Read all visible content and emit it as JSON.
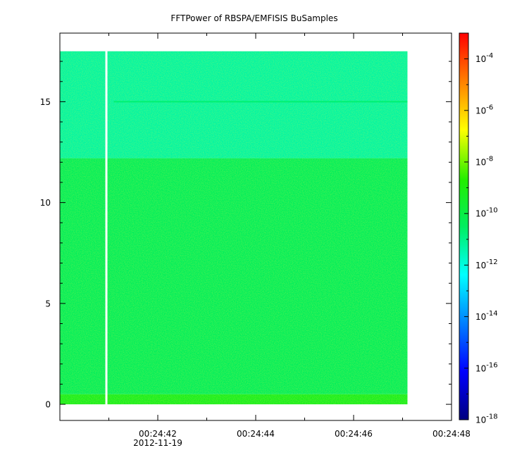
{
  "chart_data": {
    "type": "heatmap",
    "title": "FFTPower of RBSPA/EMFISIS  BuSamples",
    "xlabel": "",
    "ylabel": "",
    "x_range": [
      "00:24:40",
      "00:24:48"
    ],
    "x_ticks": [
      {
        "time": "00:24:42",
        "label": "00:24:42",
        "sublabel": "2012-11-19"
      },
      {
        "time": "00:24:44",
        "label": "00:24:44"
      },
      {
        "time": "00:24:46",
        "label": "00:24:46"
      },
      {
        "time": "00:24:48",
        "label": "00:24:48"
      }
    ],
    "x_minor_ticks": [
      "00:24:41",
      "00:24:43",
      "00:24:45",
      "00:24:47"
    ],
    "ylim": [
      -0.8,
      18.4
    ],
    "y_ticks": [
      0,
      5,
      10,
      15
    ],
    "data_extent": {
      "x_start": "00:24:40",
      "x_end": "00:24:47.1",
      "y_start": 0,
      "y_end": 17.5
    },
    "data_gap": {
      "time": "00:24:40.95"
    },
    "bands": [
      {
        "y_start": 0,
        "y_end": 0.5,
        "log10_power": -9.3
      },
      {
        "y_start": 0.5,
        "y_end": 12.2,
        "log10_power": -10.4
      },
      {
        "y_start": 12.2,
        "y_end": 17.5,
        "log10_power": -11.3
      }
    ],
    "line_feature": {
      "y": 15.0,
      "log10_power": -10.7
    },
    "colorbar": {
      "scale": "log",
      "range": [
        1e-18,
        0.001
      ],
      "tick_exponents": [
        -4,
        -6,
        -8,
        -10,
        -12,
        -14,
        -16,
        -18
      ],
      "colormap": "rainbow"
    }
  },
  "colors": {
    "background": "#ffffff",
    "axis": "#000000",
    "gap": "#ffffff"
  }
}
